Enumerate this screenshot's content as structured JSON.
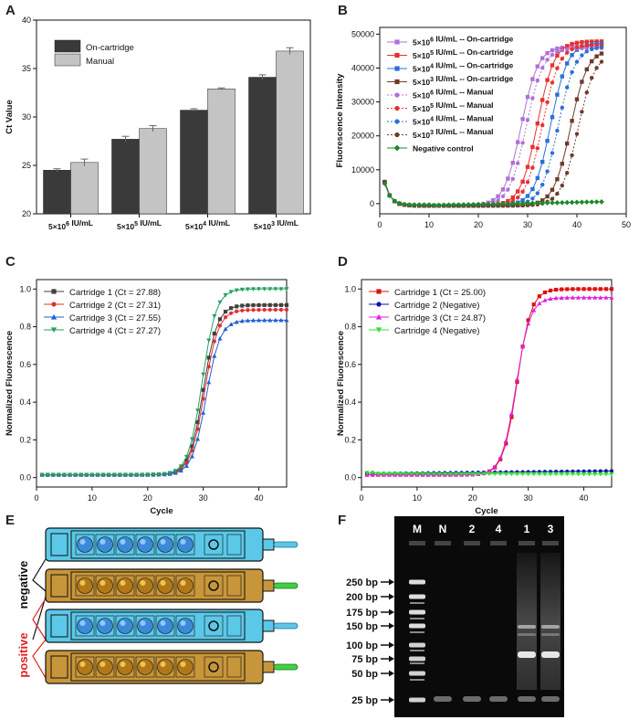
{
  "panels": {
    "A": {
      "label": "A"
    },
    "B": {
      "label": "B"
    },
    "C": {
      "label": "C"
    },
    "D": {
      "label": "D"
    },
    "E": {
      "label": "E"
    },
    "F": {
      "label": "F"
    }
  },
  "colors": {
    "dark_bar": "#3a3a3a",
    "light_bar": "#c4c4c4",
    "blue_cart": "#5bc8e8",
    "gold_cart": "#c8963a"
  },
  "chart_data": [
    {
      "panel": "A",
      "type": "bar",
      "categories": [
        "5×10⁶ IU/mL",
        "5×10⁵ IU/mL",
        "5×10⁴ IU/mL",
        "5×10³ IU/mL"
      ],
      "series": [
        {
          "name": "On-cartridge",
          "values": [
            24.5,
            27.7,
            30.7,
            34.1
          ],
          "errors": [
            0.15,
            0.3,
            0.15,
            0.25
          ],
          "color": "#3a3a3a"
        },
        {
          "name": "Manual",
          "values": [
            25.3,
            28.8,
            32.9,
            36.8
          ],
          "errors": [
            0.35,
            0.3,
            0.1,
            0.35
          ],
          "color": "#c4c4c4"
        }
      ],
      "ylabel": "Ct Value",
      "ylim": [
        20,
        40
      ],
      "yticks": [
        "20",
        "25",
        "30",
        "35",
        "40"
      ]
    },
    {
      "panel": "B",
      "type": "line",
      "xlabel": "",
      "ylabel": "Fluorescence Intensity",
      "xlim": [
        0,
        50
      ],
      "ylim": [
        -3000,
        52000
      ],
      "xticks": [
        "0",
        "10",
        "20",
        "30",
        "40",
        "50"
      ],
      "yticks": [
        "0",
        "10000",
        "20000",
        "30000",
        "40000",
        "50000"
      ],
      "legend_position": "top-left",
      "series": [
        {
          "name": "5×10⁶ IU/mL -- On-cartridge",
          "ct": 25.5,
          "plateau": 47000,
          "color": "#b070d8",
          "marker": "square",
          "dash": false
        },
        {
          "name": "5×10⁵ IU/mL -- On-cartridge",
          "ct": 28.8,
          "plateau": 48500,
          "color": "#e83030",
          "marker": "square",
          "dash": false
        },
        {
          "name": "5×10⁴ IU/mL -- On-cartridge",
          "ct": 31.5,
          "plateau": 48000,
          "color": "#2a70d8",
          "marker": "square",
          "dash": false
        },
        {
          "name": "5×10³ IU/mL -- On-cartridge",
          "ct": 35.5,
          "plateau": 46000,
          "color": "#703a2a",
          "marker": "square",
          "dash": false
        },
        {
          "name": "5×10⁶ IU/mL -- Manual",
          "ct": 26.5,
          "plateau": 46500,
          "color": "#b070d8",
          "marker": "circle",
          "dash": true
        },
        {
          "name": "5×10⁵ IU/mL -- Manual",
          "ct": 29.8,
          "plateau": 47500,
          "color": "#e83030",
          "marker": "circle",
          "dash": true
        },
        {
          "name": "5×10⁴ IU/mL -- Manual",
          "ct": 33.0,
          "plateau": 47000,
          "color": "#2a70d8",
          "marker": "circle",
          "dash": true
        },
        {
          "name": "5×10³ IU/mL -- Manual",
          "ct": 37.0,
          "plateau": 45000,
          "color": "#703a2a",
          "marker": "circle",
          "dash": true
        },
        {
          "name": "Negative control",
          "ct": null,
          "plateau": 600,
          "color": "#1a8a2a",
          "marker": "diamond",
          "dash": false
        }
      ]
    },
    {
      "panel": "C",
      "type": "line",
      "xlabel": "Cycle",
      "ylabel": "Normalized Fluorescence",
      "xlim": [
        0,
        45
      ],
      "ylim": [
        -0.05,
        1.05
      ],
      "xticks": [
        "0",
        "10",
        "20",
        "30",
        "40"
      ],
      "yticks": [
        "0.0",
        "0.2",
        "0.4",
        "0.6",
        "0.8",
        "1.0"
      ],
      "legend_position": "top-left",
      "series": [
        {
          "name": "Cartridge 1 (Ct = 27.88)",
          "mid": 30.0,
          "plateau": 0.915,
          "color": "#404040",
          "marker": "square"
        },
        {
          "name": "Cartridge 2 (Ct = 27.31)",
          "mid": 30.2,
          "plateau": 0.89,
          "color": "#e03030",
          "marker": "circle"
        },
        {
          "name": "Cartridge 3 (Ct = 27.55)",
          "mid": 30.5,
          "plateau": 0.835,
          "color": "#2060d0",
          "marker": "triangle-up"
        },
        {
          "name": "Cartridge 4 (Ct = 27.27)",
          "mid": 29.8,
          "plateau": 1.0,
          "color": "#28a060",
          "marker": "triangle-down"
        }
      ]
    },
    {
      "panel": "D",
      "type": "line",
      "xlabel": "Cycle",
      "ylabel": "Normalized Fluorescence",
      "xlim": [
        0,
        45
      ],
      "ylim": [
        -0.05,
        1.05
      ],
      "xticks": [
        "0",
        "10",
        "20",
        "30",
        "40"
      ],
      "yticks": [
        "0.0",
        "0.2",
        "0.4",
        "0.6",
        "0.8",
        "1.0"
      ],
      "legend_position": "top-left",
      "series": [
        {
          "name": "Cartridge 1 (Ct = 25.00)",
          "mid": 28.0,
          "plateau": 1.0,
          "color": "#e01010",
          "marker": "square"
        },
        {
          "name": "Cartridge 2 (Negative)",
          "mid": null,
          "plateau": 0.035,
          "color": "#1010b0",
          "marker": "circle"
        },
        {
          "name": "Cartridge 3 (Ct = 24.87)",
          "mid": 27.8,
          "plateau": 0.955,
          "color": "#e020e0",
          "marker": "triangle-up"
        },
        {
          "name": "Cartridge 4 (Negative)",
          "mid": null,
          "plateau": 0.018,
          "color": "#30e030",
          "marker": "triangle-down"
        }
      ]
    }
  ],
  "panelE": {
    "negative_label": "negative",
    "positive_label": "positive"
  },
  "panelF": {
    "lanes": [
      "M",
      "N",
      "2",
      "4",
      "1",
      "3"
    ],
    "ladder": [
      "250 bp",
      "200 bp",
      "175 bp",
      "150 bp",
      "100 bp",
      "75 bp",
      "50 bp",
      "25 bp"
    ]
  }
}
